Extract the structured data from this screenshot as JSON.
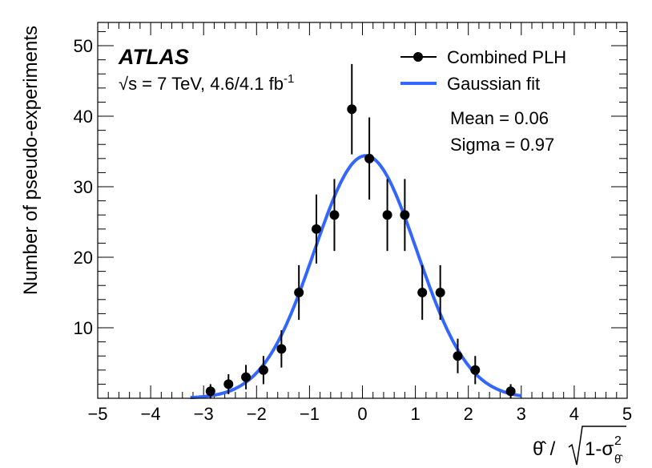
{
  "chart_data": {
    "type": "scatter",
    "title": "",
    "experiment_label": "ATLAS",
    "energy_label": "√s = 7 TeV, 4.6/4.1 fb",
    "energy_label_sup": "-1",
    "xlabel": "θ̂ / √(1-σ²_θ̂)",
    "xlabel_parts": {
      "theta_hat": "θ̂",
      "slash": " / ",
      "one_minus_sigma": "1-σ",
      "sup": "2",
      "sub": "θ̂"
    },
    "ylabel": "Number of pseudo-experiments",
    "xlim": [
      -5,
      5
    ],
    "ylim": [
      0,
      53.3
    ],
    "xticks": [
      -5,
      -4,
      -3,
      -2,
      -1,
      0,
      1,
      2,
      3,
      4,
      5
    ],
    "xtick_labels": [
      "−5",
      "−4",
      "−3",
      "−2",
      "−1",
      "0",
      "1",
      "2",
      "3",
      "4",
      "5"
    ],
    "yticks": [
      10,
      20,
      30,
      40,
      50
    ],
    "ytick_labels": [
      "10",
      "20",
      "30",
      "40",
      "50"
    ],
    "grid": false,
    "legend_placement": "top-right",
    "series": [
      {
        "name": "Combined PLH",
        "kind": "points-with-errorbars",
        "color": "#000000",
        "x": [
          -2.87,
          -2.53,
          -2.2,
          -1.87,
          -1.53,
          -1.2,
          -0.87,
          -0.53,
          -0.2,
          0.13,
          0.47,
          0.8,
          1.13,
          1.47,
          1.8,
          2.13,
          2.8
        ],
        "y": [
          1,
          2,
          3,
          4,
          7,
          15,
          24,
          26,
          41,
          34,
          26,
          26,
          15,
          15,
          6,
          4,
          1
        ],
        "error": "sqrt(N)"
      },
      {
        "name": "Gaussian fit",
        "kind": "gaussian-curve",
        "color": "#3366ff",
        "mean": 0.06,
        "sigma": 0.97,
        "amplitude": 34.4,
        "x_range": [
          -3.25,
          3.0
        ]
      }
    ],
    "fit_results": [
      "Mean = 0.06",
      "Sigma = 0.97"
    ]
  }
}
